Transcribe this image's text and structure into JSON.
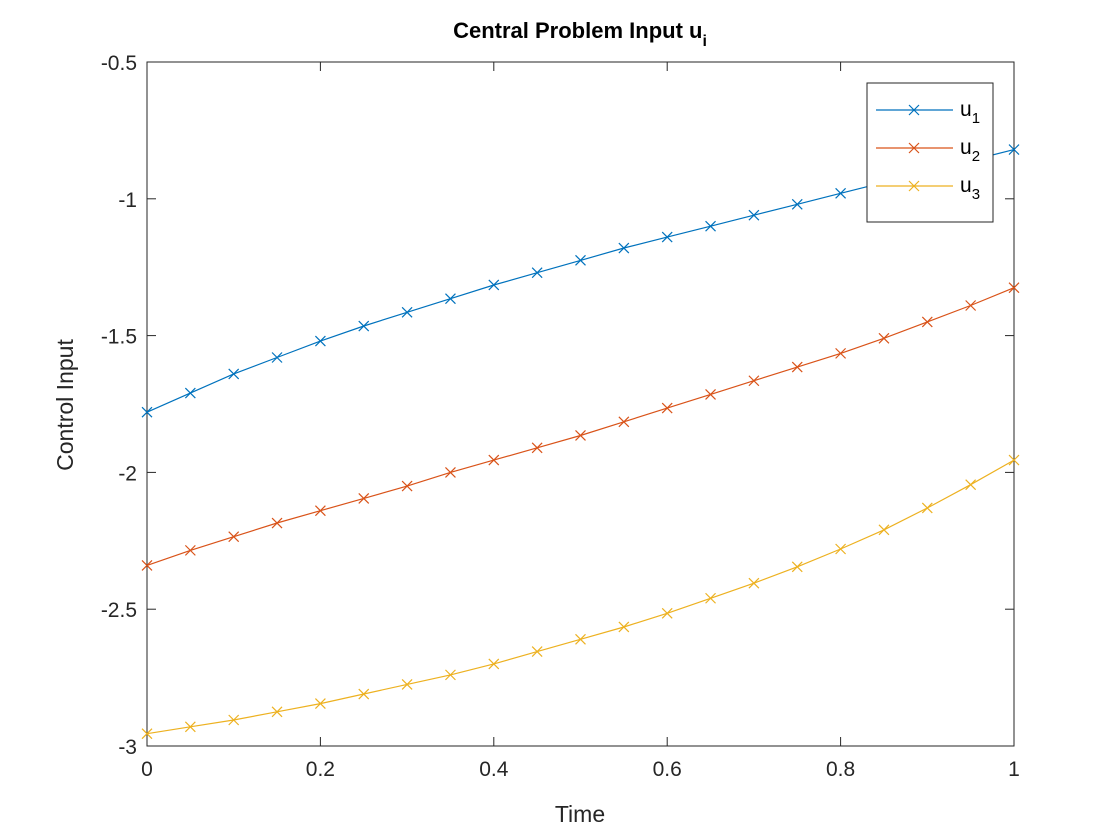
{
  "chart_data": {
    "type": "line",
    "title": "Central Problem Input u",
    "title_subscript": "i",
    "xlabel": "Time",
    "ylabel": "Control Input",
    "xlim": [
      0,
      1
    ],
    "ylim": [
      -3,
      -0.5
    ],
    "x_ticks": [
      "0",
      "0.2",
      "0.4",
      "0.6",
      "0.8",
      "1"
    ],
    "y_ticks": [
      "-3",
      "-2.5",
      "-2",
      "-1.5",
      "-1",
      "-0.5"
    ],
    "grid": false,
    "legend_position": "top-right",
    "marker": "x",
    "x": [
      0,
      0.05,
      0.1,
      0.15,
      0.2,
      0.25,
      0.3,
      0.35,
      0.4,
      0.45,
      0.5,
      0.55,
      0.6,
      0.65,
      0.7,
      0.75,
      0.8,
      0.85,
      0.9,
      0.95,
      1
    ],
    "series": [
      {
        "name": "u",
        "name_subscript": "1",
        "color": "#0072BD",
        "values": [
          -1.78,
          -1.71,
          -1.64,
          -1.58,
          -1.52,
          -1.465,
          -1.415,
          -1.365,
          -1.315,
          -1.27,
          -1.225,
          -1.18,
          -1.14,
          -1.1,
          -1.06,
          -1.02,
          -0.98,
          -0.94,
          -0.9,
          -0.86,
          -0.82
        ]
      },
      {
        "name": "u",
        "name_subscript": "2",
        "color": "#D95319",
        "values": [
          -2.34,
          -2.285,
          -2.235,
          -2.185,
          -2.14,
          -2.095,
          -2.05,
          -2.0,
          -1.955,
          -1.91,
          -1.865,
          -1.815,
          -1.765,
          -1.715,
          -1.665,
          -1.615,
          -1.565,
          -1.51,
          -1.45,
          -1.39,
          -1.325
        ]
      },
      {
        "name": "u",
        "name_subscript": "3",
        "color": "#EDB120",
        "values": [
          -2.955,
          -2.93,
          -2.905,
          -2.875,
          -2.845,
          -2.81,
          -2.775,
          -2.74,
          -2.7,
          -2.655,
          -2.61,
          -2.565,
          -2.515,
          -2.46,
          -2.405,
          -2.345,
          -2.28,
          -2.21,
          -2.13,
          -2.045,
          -1.955
        ]
      }
    ]
  }
}
